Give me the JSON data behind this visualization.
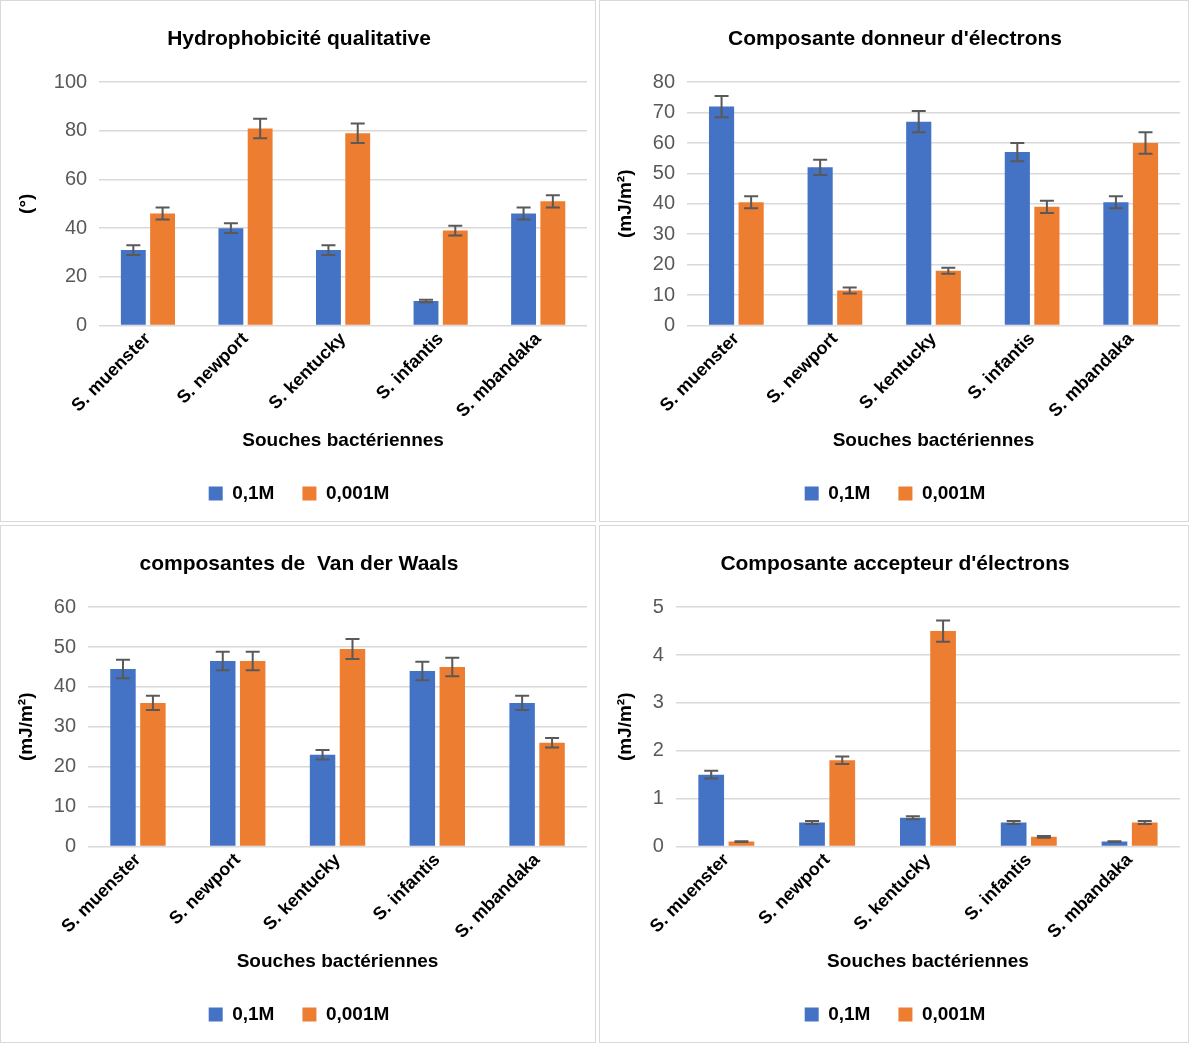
{
  "chart_data": [
    {
      "type": "bar",
      "title": "Hydrophobicité qualitative",
      "xlabel": "Souches bactériennes",
      "ylabel": "(°)",
      "categories": [
        "S. muenster",
        "S. newport",
        "S. kentucky",
        "S. infantis",
        "S. mbandaka"
      ],
      "series": [
        {
          "name": "0,1M",
          "color": "#4472c4",
          "values": [
            31,
            40,
            31,
            10,
            46
          ],
          "errors": [
            2,
            2,
            2,
            0.5,
            2.5
          ]
        },
        {
          "name": "0,001M",
          "color": "#ed7d31",
          "values": [
            46,
            81,
            79,
            39,
            51
          ],
          "errors": [
            2.5,
            4,
            4,
            2,
            2.5
          ]
        }
      ],
      "ylim": [
        0,
        100
      ],
      "yticks": [
        0,
        20,
        40,
        60,
        80,
        100
      ],
      "grid": "y",
      "legend": "bottom"
    },
    {
      "type": "bar",
      "title": "Composante donneur d'électrons",
      "xlabel": "Souches bactériennes",
      "ylabel": "(mJ/m²)",
      "categories": [
        "S. muenster",
        "S. newport",
        "S. kentucky",
        "S. infantis",
        "S. mbandaka"
      ],
      "series": [
        {
          "name": "0,1M",
          "color": "#4472c4",
          "values": [
            72,
            52,
            67,
            57,
            40.5
          ],
          "errors": [
            3.5,
            2.5,
            3.5,
            3,
            2
          ]
        },
        {
          "name": "0,001M",
          "color": "#ed7d31",
          "values": [
            40.5,
            11.5,
            18,
            39,
            60
          ],
          "errors": [
            2,
            1,
            1,
            2,
            3.5
          ]
        }
      ],
      "ylim": [
        0,
        80
      ],
      "yticks": [
        0,
        10,
        20,
        30,
        40,
        50,
        60,
        70,
        80
      ],
      "grid": "y",
      "legend": "bottom"
    },
    {
      "type": "bar",
      "title": "composantes de  Van der Waals",
      "xlabel": "Souches bactériennes",
      "ylabel": "(mJ/m²)",
      "categories": [
        "S. muenster",
        "S. newport",
        "S. kentucky",
        "S. infantis",
        "S. mbandaka"
      ],
      "series": [
        {
          "name": "0,1M",
          "color": "#4472c4",
          "values": [
            44.5,
            46.5,
            23,
            44,
            36
          ],
          "errors": [
            2.3,
            2.3,
            1.2,
            2.3,
            1.8
          ]
        },
        {
          "name": "0,001M",
          "color": "#ed7d31",
          "values": [
            36,
            46.5,
            49.5,
            45,
            26
          ],
          "errors": [
            1.8,
            2.3,
            2.5,
            2.3,
            1.2
          ]
        }
      ],
      "ylim": [
        0,
        60
      ],
      "yticks": [
        0,
        10,
        20,
        30,
        40,
        50,
        60
      ],
      "grid": "y",
      "legend": "bottom"
    },
    {
      "type": "bar",
      "title": "Composante accepteur d'électrons",
      "xlabel": "Souches bactériennes",
      "ylabel": "(mJ/m²)",
      "categories": [
        "S. muenster",
        "S. newport",
        "S. kentucky",
        "S. infantis",
        "S. mbandaka"
      ],
      "series": [
        {
          "name": "0,1M",
          "color": "#4472c4",
          "values": [
            1.5,
            0.5,
            0.6,
            0.5,
            0.1
          ],
          "errors": [
            0.08,
            0.03,
            0.03,
            0.03,
            0.01
          ]
        },
        {
          "name": "0,001M",
          "color": "#ed7d31",
          "values": [
            0.1,
            1.8,
            4.5,
            0.2,
            0.5
          ],
          "errors": [
            0.01,
            0.08,
            0.22,
            0.02,
            0.03
          ]
        }
      ],
      "ylim": [
        0,
        5
      ],
      "yticks": [
        0,
        1,
        2,
        3,
        4,
        5
      ],
      "grid": "y",
      "legend": "bottom"
    }
  ]
}
